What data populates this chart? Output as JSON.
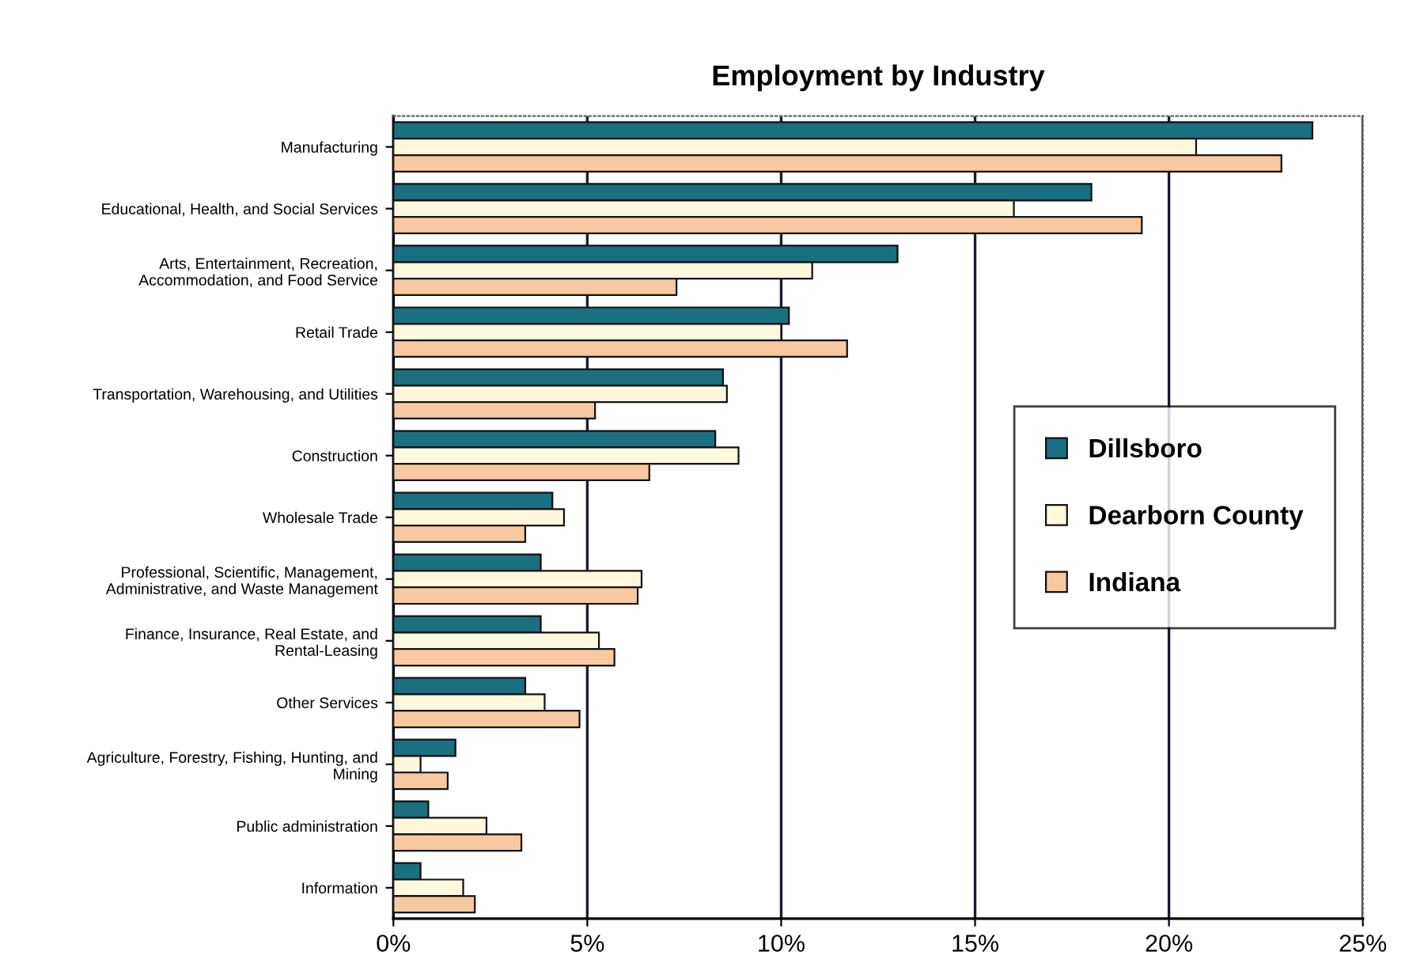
{
  "chart_data": {
    "type": "bar",
    "orientation": "horizontal",
    "title": "Employment by Industry",
    "categories": [
      "Manufacturing",
      "Educational, Health, and Social Services",
      "Arts, Entertainment, Recreation,\nAccommodation, and Food Service",
      "Retail Trade",
      "Transportation, Warehousing, and Utilities",
      "Construction",
      "Wholesale Trade",
      "Professional, Scientific, Management,\nAdministrative, and Waste Management",
      "Finance, Insurance, Real Estate, and\nRental-Leasing",
      "Other Services",
      "Agriculture, Forestry, Fishing, Hunting, and\nMining",
      "Public administration",
      "Information"
    ],
    "series": [
      {
        "name": "Dillsboro",
        "color": "#1a6f80",
        "values": [
          23.7,
          18.0,
          13.0,
          10.2,
          8.5,
          8.3,
          4.1,
          3.8,
          3.8,
          3.4,
          1.6,
          0.9,
          0.7
        ]
      },
      {
        "name": "Dearborn County",
        "color": "#fff8dc",
        "values": [
          20.7,
          16.0,
          10.8,
          10.0,
          8.6,
          8.9,
          4.4,
          6.4,
          5.3,
          3.9,
          0.7,
          2.4,
          1.8
        ]
      },
      {
        "name": "Indiana",
        "color": "#f8c8a0",
        "values": [
          22.9,
          19.3,
          7.3,
          11.7,
          5.2,
          6.6,
          3.4,
          6.3,
          5.7,
          4.8,
          1.4,
          3.3,
          2.1
        ]
      }
    ],
    "xlim": [
      0,
      25
    ],
    "xticks": [
      {
        "value": 0,
        "label": "0%"
      },
      {
        "value": 5,
        "label": "5%"
      },
      {
        "value": 10,
        "label": "10%"
      },
      {
        "value": 15,
        "label": "15%"
      },
      {
        "value": 20,
        "label": "20%"
      },
      {
        "value": 25,
        "label": "25%"
      }
    ],
    "grid": "x",
    "legend": "right"
  }
}
